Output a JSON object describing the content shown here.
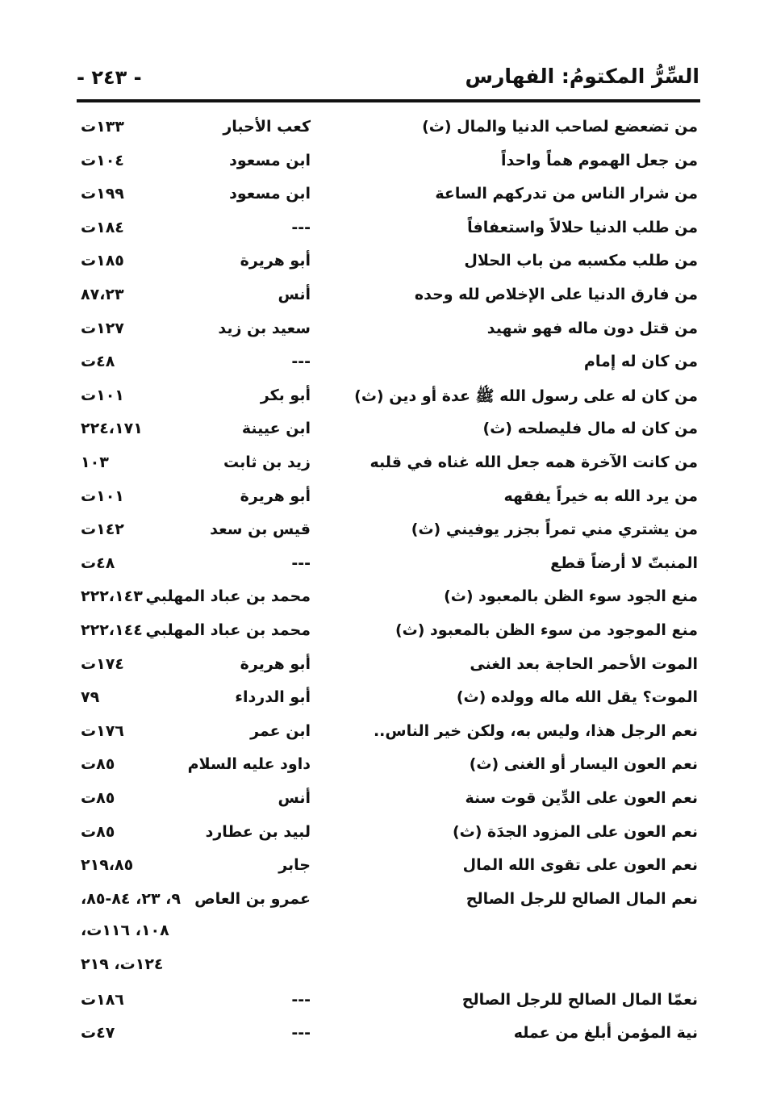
{
  "header": {
    "title": "السِّرُّ المكتومُ: الفهارس",
    "page_number": "- ٢٤٣ -"
  },
  "entries": [
    {
      "text": "من تضعضع لصاحب الدنيا والمال (ث)",
      "narrator": "كعب الأحبار",
      "pages": [
        "١٣٣ت"
      ]
    },
    {
      "text": "من جعل الهموم هماً واحداً",
      "narrator": "ابن مسعود",
      "pages": [
        "١٠٤ت"
      ]
    },
    {
      "text": "من شرار الناس من تدركهم الساعة",
      "narrator": "ابن مسعود",
      "pages": [
        "١٩٩ت"
      ]
    },
    {
      "text": "من طلب الدنيا حلالاً واستعفافاً",
      "narrator": "---",
      "pages": [
        "١٨٤ت"
      ]
    },
    {
      "text": "من طلب مكسبه من باب الحلال",
      "narrator": "أبو هريرة",
      "pages": [
        "١٨٥ت"
      ]
    },
    {
      "text": "من فارق الدنيا على الإخلاص لله وحده",
      "narrator": "أنس",
      "pages": [
        "٨٧،٢٣"
      ]
    },
    {
      "text": "من قتل دون ماله فهو شهيد",
      "narrator": "سعيد بن زيد",
      "pages": [
        "١٢٧ت"
      ]
    },
    {
      "text": "من كان له إمام",
      "narrator": "---",
      "pages": [
        "٤٨ت"
      ]
    },
    {
      "text": "من كان له على رسول الله ﷺ عدة أو دين (ث)",
      "narrator": "أبو بكر",
      "pages": [
        "١٠١ت"
      ]
    },
    {
      "text": "من كان له مال فليصلحه (ث)",
      "narrator": "ابن عيينة",
      "pages": [
        "٢٢٤،١٧١"
      ]
    },
    {
      "text": "من كانت الآخرة همه جعل الله غناه في قلبه",
      "narrator": "زيد بن ثابت",
      "pages": [
        "١٠٣"
      ]
    },
    {
      "text": "من يرد الله به خيراً يفقهه",
      "narrator": "أبو هريرة",
      "pages": [
        "١٠١ت"
      ]
    },
    {
      "text": "من يشتري مني تمراً بجزر يوفيني (ث)",
      "narrator": "قيس بن سعد",
      "pages": [
        "١٤٢ت"
      ]
    },
    {
      "text": "المنبتّ لا أرضاً قطع",
      "narrator": "---",
      "pages": [
        "٤٨ت"
      ]
    },
    {
      "text": "منع الجود سوء الظن بالمعبود (ث)",
      "narrator": "محمد بن عباد المهلبي",
      "pages": [
        "٢٢٢،١٤٣"
      ]
    },
    {
      "text": "منع الموجود من سوء الظن بالمعبود (ث)",
      "narrator": "محمد بن عباد المهلبي",
      "pages": [
        "٢٢٢،١٤٤"
      ]
    },
    {
      "text": "الموت الأحمر الحاجة بعد الغنى",
      "narrator": "أبو هريرة",
      "pages": [
        "١٧٤ت"
      ]
    },
    {
      "text": "الموت؟ يقل الله ماله وولده (ث)",
      "narrator": "أبو الدرداء",
      "pages": [
        "٧٩"
      ]
    },
    {
      "text": "نعم الرجل هذا، وليس به، ولكن خير الناس..",
      "narrator": "ابن عمر",
      "pages": [
        "١٧٦ت"
      ]
    },
    {
      "text": "نعم العون اليسار أو الغنى (ث)",
      "narrator": "داود عليه السلام",
      "pages": [
        "٨٥ت"
      ]
    },
    {
      "text": "نعم العون على الدِّين قوت سنة",
      "narrator": "أنس",
      "pages": [
        "٨٥ت"
      ]
    },
    {
      "text": "نعم العون على المزود الجدَة (ث)",
      "narrator": "لبيد بن عطارد",
      "pages": [
        "٨٥ت"
      ]
    },
    {
      "text": "نعم العون على تقوى الله المال",
      "narrator": "جابر",
      "pages": [
        "٢١٩،٨٥"
      ]
    },
    {
      "text": "نعم المال الصالح للرجل الصالح",
      "narrator": "عمرو بن العاص",
      "pages": [
        "٩، ٢٣، ٨٤-٨٥،",
        "١٠٨، ١١٦ت،",
        "١٢٤ت، ٢١٩"
      ]
    },
    {
      "text": "نعمّا المال الصالح للرجل الصالح",
      "narrator": "---",
      "pages": [
        "١٨٦ت"
      ]
    },
    {
      "text": "نية المؤمن أبلغ من عمله",
      "narrator": "---",
      "pages": [
        "٤٧ت"
      ]
    }
  ]
}
